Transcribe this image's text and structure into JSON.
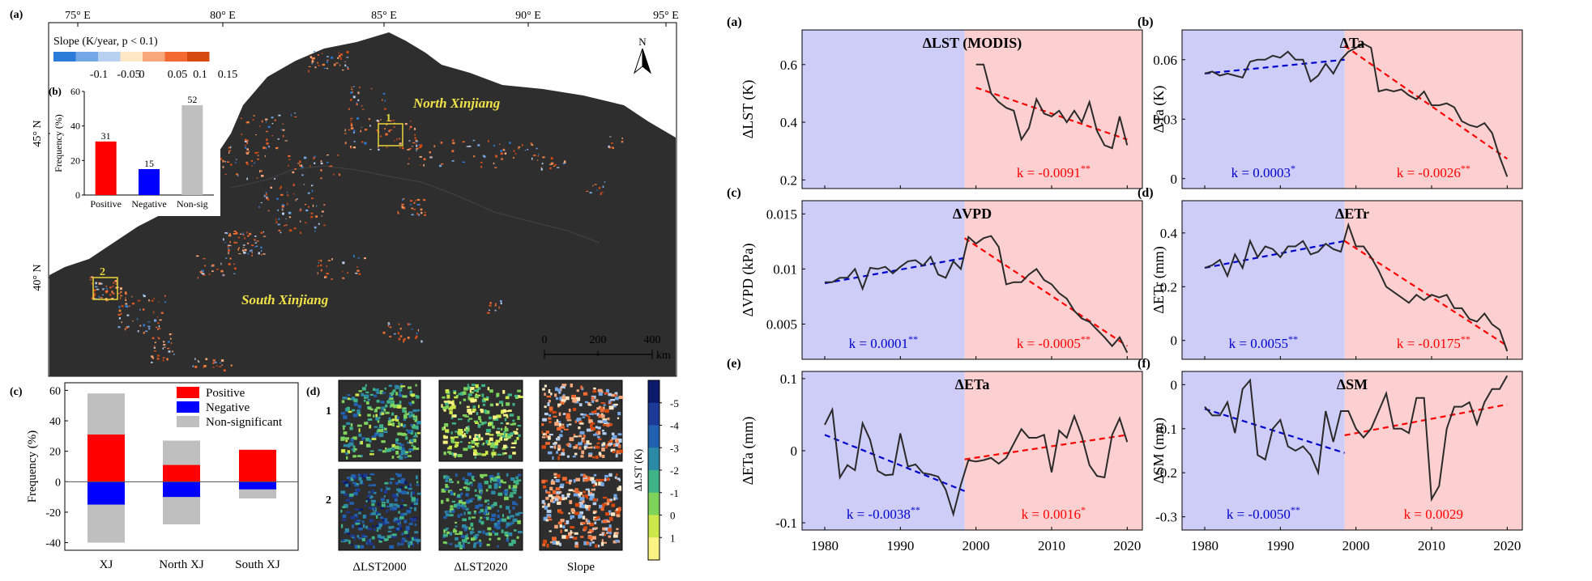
{
  "panel_labels": [
    "(a)",
    "(b)",
    "(c)",
    "(d)",
    "(a)",
    "(b)",
    "(c)",
    "(d)",
    "(e)",
    "(f)"
  ],
  "map": {
    "lon_ticks": [
      "75° E",
      "80° E",
      "85° E",
      "90° E",
      "95° E"
    ],
    "lat_ticks": [
      "45° N",
      "40° N"
    ],
    "legend_title": "Slope (K/year, p < 0.1)",
    "legend_labels": [
      "-0.1",
      "-0.05",
      "0",
      "0.05",
      "0.1",
      "0.15"
    ],
    "legend_colors": [
      "#2b7bd8",
      "#73a7e6",
      "#b7d0f0",
      "#fde7c4",
      "#f7a77a",
      "#f36a30",
      "#d64a10"
    ],
    "north_arrow": "N",
    "regions": [
      "North Xinjiang",
      "South Xinjiang"
    ],
    "sites": [
      "1",
      "2"
    ],
    "scale_ticks": [
      "0",
      "200",
      "400"
    ],
    "scale_unit": "km",
    "background_color": "#2e2e2e",
    "outside_color": "#ffffff"
  },
  "chart_data": [
    {
      "id": "inset-b",
      "type": "bar",
      "categories": [
        "Positive",
        "Negative",
        "Non-sig"
      ],
      "values": [
        31,
        15,
        52
      ],
      "colors": [
        "#ff0000",
        "#0000ff",
        "#bfbfbf"
      ],
      "ylabel": "Frequency (%)",
      "ylim": [
        0,
        60
      ],
      "yticks": [
        0,
        20,
        40,
        60
      ]
    },
    {
      "id": "panel-c",
      "type": "bar",
      "stacked": true,
      "categories": [
        "XJ",
        "North XJ",
        "South XJ"
      ],
      "series": [
        {
          "name": "Positive",
          "color": "#ff0000",
          "pos": [
            31,
            11,
            21
          ],
          "neg": [
            -15,
            -10,
            -5
          ]
        },
        {
          "name": "Negative",
          "color": "#0000ff"
        },
        {
          "name": "Non-significant",
          "color": "#bfbfbf",
          "pos": [
            58,
            27,
            20
          ],
          "neg": [
            -40,
            -28,
            -11
          ]
        }
      ],
      "ylabel": "Frequency (%)",
      "ylim": [
        -45,
        65
      ],
      "yticks": [
        -40,
        -20,
        0,
        20,
        40,
        60
      ],
      "legend": "top-right"
    },
    {
      "id": "panel-d",
      "type": "heatmap",
      "rows": [
        "1",
        "2"
      ],
      "columns": [
        "ΔLST2000",
        "ΔLST2020",
        "Slope"
      ],
      "colorbar_label": "ΔLST (K)",
      "colorbar_ticks": [
        "-5",
        "-4",
        "-3",
        "-2",
        "-1",
        "0",
        "1"
      ],
      "colorbar_colors": [
        "#0c1a6b",
        "#1d3a98",
        "#2260b0",
        "#2d8aa7",
        "#3eb386",
        "#7fd35a",
        "#cde84a",
        "#fbf384"
      ]
    },
    {
      "id": "ts-lst",
      "type": "line",
      "title": "ΔLST (MODIS)",
      "ylabel": "ΔLST (K)",
      "x": [
        2000,
        2001,
        2002,
        2003,
        2004,
        2005,
        2006,
        2007,
        2008,
        2009,
        2010,
        2011,
        2012,
        2013,
        2014,
        2015,
        2016,
        2017,
        2018,
        2019,
        2020
      ],
      "y": [
        0.6,
        0.6,
        0.5,
        0.47,
        0.45,
        0.44,
        0.34,
        0.38,
        0.48,
        0.43,
        0.42,
        0.44,
        0.4,
        0.44,
        0.4,
        0.47,
        0.37,
        0.32,
        0.31,
        0.42,
        0.32
      ],
      "ylim": [
        0.17,
        0.72
      ],
      "yticks": [
        0.2,
        0.4,
        0.6
      ],
      "ytick_labels": [
        "0.2",
        "0.4",
        "0.6"
      ],
      "xlim": [
        1977,
        2022
      ],
      "trends": [
        {
          "x": [
            2000,
            2020
          ],
          "y": [
            0.52,
            0.34
          ],
          "color": "#ff0000",
          "label": "k = -0.0091",
          "sig": "**"
        }
      ]
    },
    {
      "id": "ts-ta",
      "type": "line",
      "title": "ΔTa",
      "ylabel": "ΔTa (K)",
      "x": [
        1980,
        1981,
        1982,
        1983,
        1984,
        1985,
        1986,
        1987,
        1988,
        1989,
        1990,
        1991,
        1992,
        1993,
        1994,
        1995,
        1996,
        1997,
        1998,
        1999,
        2000,
        2001,
        2002,
        2003,
        2004,
        2005,
        2006,
        2007,
        2008,
        2009,
        2010,
        2011,
        2012,
        2013,
        2014,
        2015,
        2016,
        2017,
        2018,
        2019,
        2020
      ],
      "y": [
        0.053,
        0.054,
        0.052,
        0.053,
        0.052,
        0.051,
        0.059,
        0.06,
        0.06,
        0.062,
        0.061,
        0.064,
        0.06,
        0.06,
        0.049,
        0.052,
        0.058,
        0.053,
        0.06,
        0.064,
        0.066,
        0.068,
        0.066,
        0.044,
        0.045,
        0.044,
        0.045,
        0.042,
        0.04,
        0.044,
        0.037,
        0.037,
        0.038,
        0.036,
        0.029,
        0.027,
        0.026,
        0.028,
        0.023,
        0.011,
        0.001
      ],
      "ylim": [
        -0.005,
        0.075
      ],
      "yticks": [
        0,
        0.03,
        0.06
      ],
      "ytick_labels": [
        "0",
        "0.03",
        "0.06"
      ],
      "xlim": [
        1977,
        2022
      ],
      "trends": [
        {
          "x": [
            1980,
            1998.5
          ],
          "y": [
            0.053,
            0.06
          ],
          "color": "#0000cc",
          "label": "k = 0.0003",
          "sig": "*"
        },
        {
          "x": [
            1998.5,
            2020
          ],
          "y": [
            0.067,
            0.01
          ],
          "color": "#ff0000",
          "label": "k = -0.0026",
          "sig": "**"
        }
      ]
    },
    {
      "id": "ts-vpd",
      "type": "line",
      "title": "ΔVPD",
      "ylabel": "ΔVPD (kPa)",
      "x": [
        1980,
        1981,
        1982,
        1983,
        1984,
        1985,
        1986,
        1987,
        1988,
        1989,
        1990,
        1991,
        1992,
        1993,
        1994,
        1995,
        1996,
        1997,
        1998,
        1999,
        2000,
        2001,
        2002,
        2003,
        2004,
        2005,
        2006,
        2007,
        2008,
        2009,
        2010,
        2011,
        2012,
        2013,
        2014,
        2015,
        2016,
        2017,
        2018,
        2019,
        2020
      ],
      "y": [
        0.0088,
        0.0088,
        0.0092,
        0.0092,
        0.01,
        0.0082,
        0.0101,
        0.01,
        0.0102,
        0.0096,
        0.0102,
        0.0107,
        0.0108,
        0.0103,
        0.0111,
        0.0095,
        0.0092,
        0.0107,
        0.01,
        0.0129,
        0.0123,
        0.0128,
        0.013,
        0.012,
        0.0086,
        0.0088,
        0.0088,
        0.0095,
        0.01,
        0.009,
        0.0086,
        0.0078,
        0.0073,
        0.0062,
        0.0055,
        0.0052,
        0.0045,
        0.0038,
        0.003,
        0.0038,
        0.0024
      ],
      "ylim": [
        0.0018,
        0.0162
      ],
      "yticks": [
        0.005,
        0.01,
        0.015
      ],
      "ytick_labels": [
        "0.005",
        "0.01",
        "0.015"
      ],
      "xlim": [
        1977,
        2022
      ],
      "trends": [
        {
          "x": [
            1980,
            1998.5
          ],
          "y": [
            0.0087,
            0.011
          ],
          "color": "#0000cc",
          "label": "k = 0.0001",
          "sig": "**"
        },
        {
          "x": [
            1998.5,
            2020
          ],
          "y": [
            0.0128,
            0.003
          ],
          "color": "#ff0000",
          "label": "k = -0.0005",
          "sig": "**"
        }
      ]
    },
    {
      "id": "ts-etr",
      "type": "line",
      "title": "ΔETr",
      "ylabel": "ΔETr (mm)",
      "x": [
        1980,
        1981,
        1982,
        1983,
        1984,
        1985,
        1986,
        1987,
        1988,
        1989,
        1990,
        1991,
        1992,
        1993,
        1994,
        1995,
        1996,
        1997,
        1998,
        1999,
        2000,
        2001,
        2002,
        2003,
        2004,
        2005,
        2006,
        2007,
        2008,
        2009,
        2010,
        2011,
        2012,
        2013,
        2014,
        2015,
        2016,
        2017,
        2018,
        2019,
        2020
      ],
      "y": [
        0.27,
        0.28,
        0.3,
        0.24,
        0.32,
        0.27,
        0.37,
        0.31,
        0.35,
        0.34,
        0.31,
        0.35,
        0.35,
        0.37,
        0.32,
        0.33,
        0.36,
        0.34,
        0.33,
        0.43,
        0.35,
        0.35,
        0.31,
        0.26,
        0.2,
        0.18,
        0.16,
        0.14,
        0.17,
        0.15,
        0.17,
        0.16,
        0.17,
        0.12,
        0.12,
        0.08,
        0.07,
        0.1,
        0.06,
        0.04,
        -0.04
      ],
      "ylim": [
        -0.07,
        0.52
      ],
      "yticks": [
        0,
        0.2,
        0.4
      ],
      "ytick_labels": [
        "0",
        "0.2",
        "0.4"
      ],
      "xlim": [
        1977,
        2022
      ],
      "trends": [
        {
          "x": [
            1980,
            1998.5
          ],
          "y": [
            0.27,
            0.37
          ],
          "color": "#0000cc",
          "label": "k = 0.0055",
          "sig": "**"
        },
        {
          "x": [
            1998.5,
            2020
          ],
          "y": [
            0.37,
            -0.02
          ],
          "color": "#ff0000",
          "label": "k = -0.0175",
          "sig": "**"
        }
      ]
    },
    {
      "id": "ts-eta",
      "type": "line",
      "title": "ΔETa",
      "ylabel": "ΔETa (mm)",
      "x": [
        1980,
        1981,
        1982,
        1983,
        1984,
        1985,
        1986,
        1987,
        1988,
        1989,
        1990,
        1991,
        1992,
        1993,
        1994,
        1995,
        1996,
        1997,
        1998,
        1999,
        2000,
        2001,
        2002,
        2003,
        2004,
        2005,
        2006,
        2007,
        2008,
        2009,
        2010,
        2011,
        2012,
        2013,
        2014,
        2015,
        2016,
        2017,
        2018,
        2019,
        2020
      ],
      "y": [
        0.036,
        0.057,
        -0.037,
        -0.02,
        -0.027,
        0.038,
        0.015,
        -0.028,
        -0.034,
        -0.033,
        0.024,
        -0.022,
        -0.019,
        -0.031,
        -0.033,
        -0.036,
        -0.054,
        -0.088,
        -0.047,
        -0.013,
        -0.015,
        -0.013,
        -0.01,
        -0.018,
        -0.01,
        0.01,
        0.03,
        0.018,
        0.018,
        0.022,
        -0.03,
        0.028,
        0.018,
        0.048,
        0.02,
        -0.02,
        -0.035,
        -0.037,
        0.022,
        0.045,
        0.012
      ],
      "ylim": [
        -0.11,
        0.11
      ],
      "yticks": [
        -0.1,
        0,
        0.1
      ],
      "ytick_labels": [
        "-0.1",
        "0",
        "0.1"
      ],
      "xlim": [
        1977,
        2022
      ],
      "xticks": [
        1980,
        1990,
        2000,
        2010,
        2020
      ],
      "xtick_labels": [
        "1980",
        "1990",
        "2000",
        "2010",
        "2020"
      ],
      "trends": [
        {
          "x": [
            1980,
            1998.5
          ],
          "y": [
            0.022,
            -0.056
          ],
          "color": "#0000cc",
          "label": "k = -0.0038",
          "sig": "**"
        },
        {
          "x": [
            1998.5,
            2020
          ],
          "y": [
            -0.012,
            0.022
          ],
          "color": "#ff0000",
          "label": "k = 0.0016",
          "sig": "*"
        }
      ]
    },
    {
      "id": "ts-sm",
      "type": "line",
      "title": "ΔSM",
      "ylabel": "ΔSM (mm)",
      "x": [
        1980,
        1981,
        1982,
        1983,
        1984,
        1985,
        1986,
        1987,
        1988,
        1989,
        1990,
        1991,
        1992,
        1993,
        1994,
        1995,
        1996,
        1997,
        1998,
        1999,
        2000,
        2001,
        2002,
        2003,
        2004,
        2005,
        2006,
        2007,
        2008,
        2009,
        2010,
        2011,
        2012,
        2013,
        2014,
        2015,
        2016,
        2017,
        2018,
        2019,
        2020
      ],
      "y": [
        -0.05,
        -0.07,
        -0.07,
        -0.04,
        -0.11,
        -0.01,
        0.01,
        -0.16,
        -0.17,
        -0.1,
        -0.08,
        -0.14,
        -0.15,
        -0.14,
        -0.16,
        -0.2,
        -0.06,
        -0.13,
        -0.06,
        -0.06,
        -0.1,
        -0.12,
        -0.1,
        -0.06,
        -0.02,
        -0.1,
        -0.1,
        -0.11,
        -0.03,
        -0.03,
        -0.26,
        -0.23,
        -0.1,
        -0.05,
        -0.05,
        -0.04,
        -0.09,
        -0.04,
        -0.01,
        -0.01,
        0.02
      ],
      "ylim": [
        -0.33,
        0.03
      ],
      "yticks": [
        -0.3,
        -0.2,
        -0.1,
        0
      ],
      "ytick_labels": [
        "-0.3",
        "-0.2",
        "-0.1",
        "0"
      ],
      "xlim": [
        1977,
        2022
      ],
      "xticks": [
        1980,
        1990,
        2000,
        2010,
        2020
      ],
      "xtick_labels": [
        "1980",
        "1990",
        "2000",
        "2010",
        "2020"
      ],
      "trends": [
        {
          "x": [
            1980,
            1998.5
          ],
          "y": [
            -0.055,
            -0.155
          ],
          "color": "#0000cc",
          "label": "k = -0.0050",
          "sig": "**"
        },
        {
          "x": [
            1998.5,
            2020
          ],
          "y": [
            -0.115,
            -0.045
          ],
          "color": "#ff0000",
          "label": "k = 0.0029",
          "sig": ""
        }
      ]
    }
  ],
  "period_colors": {
    "early": "#cdcdf7",
    "late": "#fcd0d0"
  },
  "period_split": 1998.5
}
